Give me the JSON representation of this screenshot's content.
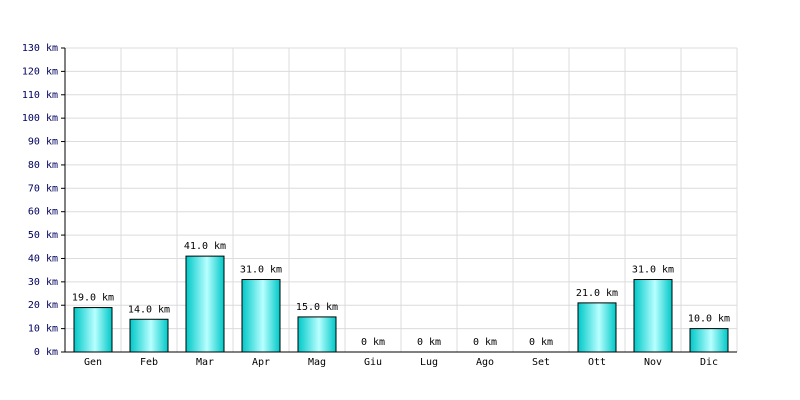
{
  "chart_data": {
    "type": "bar",
    "categories": [
      "Gen",
      "Feb",
      "Mar",
      "Apr",
      "Mag",
      "Giu",
      "Lug",
      "Ago",
      "Set",
      "Ott",
      "Nov",
      "Dic"
    ],
    "values": [
      19,
      14,
      41,
      31,
      15,
      0,
      0,
      0,
      0,
      21,
      31,
      10
    ],
    "value_labels": [
      "19.0 km",
      "14.0 km",
      "41.0 km",
      "31.0 km",
      "15.0 km",
      "0 km",
      "0 km",
      "0 km",
      "0 km",
      "21.0 km",
      "31.0 km",
      "10.0 km"
    ],
    "color": "#00c8c8",
    "ylim": [
      0,
      130
    ],
    "yticks": [
      {
        "value": 0,
        "label": "0 km"
      },
      {
        "value": 10,
        "label": "10 km"
      },
      {
        "value": 20,
        "label": "20 km"
      },
      {
        "value": 30,
        "label": "30 km"
      },
      {
        "value": 40,
        "label": "40 km"
      },
      {
        "value": 50,
        "label": "50 km"
      },
      {
        "value": 60,
        "label": "60 km"
      },
      {
        "value": 70,
        "label": "70 km"
      },
      {
        "value": 80,
        "label": "80 km"
      },
      {
        "value": 90,
        "label": "90 km"
      },
      {
        "value": 100,
        "label": "100 km"
      },
      {
        "value": 110,
        "label": "110 km"
      },
      {
        "value": 120,
        "label": "120 km"
      },
      {
        "value": 130,
        "label": "130 km"
      }
    ],
    "grid": true
  }
}
